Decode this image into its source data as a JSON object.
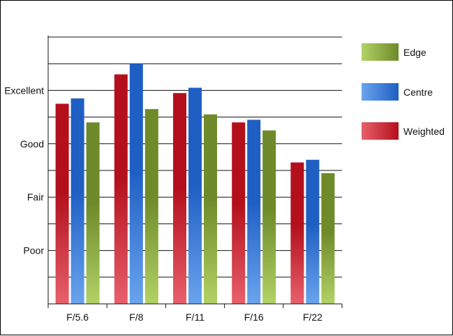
{
  "chart_data": {
    "type": "bar",
    "categories": [
      "F/5.6",
      "F/8",
      "F/11",
      "F/16",
      "F/22"
    ],
    "y_ticks": [
      {
        "label": "Poor",
        "value": 1
      },
      {
        "label": "Fair",
        "value": 2
      },
      {
        "label": "Good",
        "value": 3
      },
      {
        "label": "Excellent",
        "value": 4
      }
    ],
    "ylim": [
      0,
      5
    ],
    "series": [
      {
        "name": "Weighted",
        "values": [
          3.75,
          4.3,
          3.95,
          3.4,
          2.65
        ]
      },
      {
        "name": "Centre",
        "values": [
          3.85,
          4.5,
          4.05,
          3.45,
          2.7
        ]
      },
      {
        "name": "Edge",
        "values": [
          3.4,
          3.65,
          3.55,
          3.25,
          2.45
        ]
      }
    ],
    "legend": [
      "Edge",
      "Centre",
      "Weighted"
    ],
    "legend_position": "right",
    "grid": true,
    "colors": {
      "Weighted": {
        "top": "#b3101c",
        "bottom": "#e8606c"
      },
      "Centre": {
        "top": "#1f5fc4",
        "bottom": "#6aa4ee"
      },
      "Edge": {
        "top": "#6e8a2a",
        "bottom": "#b2d266"
      }
    }
  }
}
